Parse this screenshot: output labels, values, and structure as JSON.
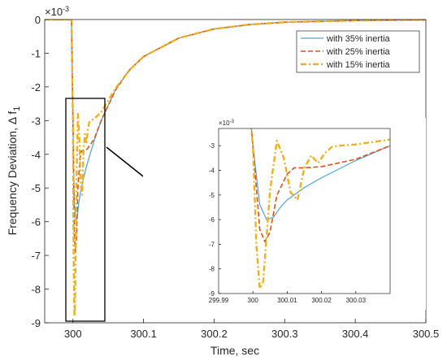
{
  "chart_data": [
    {
      "type": "line",
      "xlabel": "Time, sec",
      "ylabel": "Frequency Deviation, Δ f",
      "ylabel_subscript": "1",
      "y_exponent": "×10",
      "y_exponent_power": "-3",
      "xlim": [
        299.96,
        300.5
      ],
      "ylim": [
        -9,
        0
      ],
      "x_ticks": [
        300,
        300.1,
        300.2,
        300.3,
        300.4,
        300.5
      ],
      "x_tick_labels": [
        "300",
        "300.1",
        "300.2",
        "300.3",
        "300.4",
        "300.5"
      ],
      "y_ticks": [
        0,
        -1,
        -2,
        -3,
        -4,
        -5,
        -6,
        -7,
        -8,
        -9
      ],
      "y_tick_labels": [
        "0",
        "-1",
        "-2",
        "-3",
        "-4",
        "-5",
        "-6",
        "-7",
        "-8",
        "-9"
      ],
      "grid": false,
      "legend_position": "top-right",
      "series": [
        {
          "name": "with 35% inertia",
          "color": "#4da3dc",
          "style": "solid",
          "x": [
            299.96,
            299.998,
            300.0,
            300.002,
            300.004,
            300.006,
            300.008,
            300.01,
            300.015,
            300.02,
            300.03,
            300.04,
            300.06,
            300.08,
            300.1,
            300.15,
            300.2,
            300.25,
            300.3,
            300.4,
            300.5
          ],
          "y": [
            0,
            0,
            -3,
            -5.4,
            -6.0,
            -5.9,
            -5.5,
            -5.2,
            -4.7,
            -4.3,
            -3.6,
            -3.0,
            -2.1,
            -1.5,
            -1.1,
            -0.55,
            -0.28,
            -0.15,
            -0.08,
            -0.03,
            -0.01
          ]
        },
        {
          "name": "with 25% inertia",
          "color": "#d95319",
          "style": "dashed",
          "x": [
            299.96,
            299.998,
            300.0,
            300.002,
            300.0035,
            300.005,
            300.007,
            300.01,
            300.012,
            300.015,
            300.02,
            300.03,
            300.04,
            300.06,
            300.08,
            300.1,
            300.15,
            300.2,
            300.25,
            300.3,
            300.4,
            300.5
          ],
          "y": [
            0,
            0,
            -3,
            -6.4,
            -6.9,
            -6.5,
            -5.0,
            -4.15,
            -3.9,
            -3.9,
            -3.85,
            -3.55,
            -3.0,
            -2.1,
            -1.5,
            -1.1,
            -0.55,
            -0.28,
            -0.15,
            -0.08,
            -0.03,
            -0.01
          ]
        },
        {
          "name": "with 15% inertia",
          "color": "#edb120",
          "style": "dashdot",
          "x": [
            299.96,
            299.998,
            300.0,
            300.001,
            300.002,
            300.003,
            300.005,
            300.007,
            300.009,
            300.011,
            300.013,
            300.015,
            300.017,
            300.019,
            300.021,
            300.023,
            300.025,
            300.03,
            300.04,
            300.06,
            300.08,
            300.1,
            300.15,
            300.2,
            300.25,
            300.3,
            300.4,
            300.5
          ],
          "y": [
            0,
            0,
            -3,
            -7.0,
            -8.8,
            -8.5,
            -4.8,
            -2.8,
            -3.5,
            -4.9,
            -5.2,
            -3.9,
            -3.4,
            -3.7,
            -3.3,
            -3.05,
            -3.0,
            -2.95,
            -2.75,
            -2.05,
            -1.5,
            -1.1,
            -0.55,
            -0.28,
            -0.15,
            -0.08,
            -0.03,
            -0.01
          ]
        }
      ]
    },
    {
      "type": "line",
      "role": "inset",
      "y_exponent": "×10",
      "y_exponent_power": "-3",
      "xlim": [
        299.99,
        300.04
      ],
      "ylim": [
        -9,
        -2.3
      ],
      "x_ticks": [
        299.99,
        300,
        300.01,
        300.02,
        300.03
      ],
      "x_tick_labels": [
        "299.99",
        "300",
        "300.01",
        "300.02",
        "300.03"
      ],
      "y_ticks": [
        -3,
        -4,
        -5,
        -6,
        -7,
        -8,
        -9
      ],
      "y_tick_labels": [
        "-3",
        "-4",
        "-5",
        "-6",
        "-7",
        "-8",
        "-9"
      ],
      "grid": false
    }
  ]
}
